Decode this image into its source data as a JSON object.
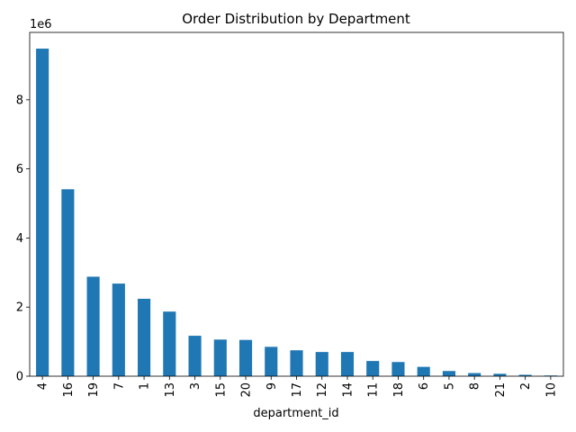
{
  "chart_data": {
    "type": "bar",
    "title": "Order Distribution by Department",
    "xlabel": "department_id",
    "ylabel": "",
    "offset_text": "1e6",
    "categories": [
      "4",
      "16",
      "19",
      "7",
      "1",
      "13",
      "3",
      "15",
      "20",
      "9",
      "17",
      "12",
      "14",
      "11",
      "18",
      "6",
      "5",
      "8",
      "21",
      "2",
      "10"
    ],
    "values": [
      9480000,
      5410000,
      2880000,
      2680000,
      2240000,
      1870000,
      1170000,
      1060000,
      1050000,
      850000,
      750000,
      700000,
      700000,
      440000,
      410000,
      270000,
      150000,
      90000,
      70000,
      40000,
      20000
    ],
    "ylim": [
      0,
      9950000
    ],
    "yticks": [
      0,
      2000000,
      4000000,
      6000000,
      8000000
    ],
    "ytick_labels": [
      "0",
      "2",
      "4",
      "6",
      "8"
    ],
    "bar_color": "#1f77b4",
    "grid": false,
    "legend": "none"
  }
}
